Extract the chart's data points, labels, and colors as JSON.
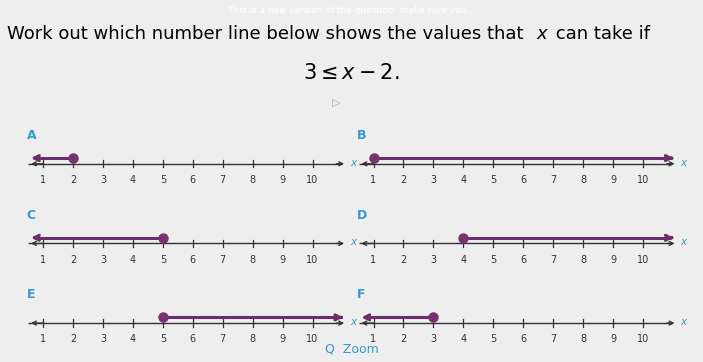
{
  "header_text": "This is a new version of the question; make sure you...",
  "title_line1": "Work out which number line below shows the values that ",
  "title_italic": "x",
  "title_line1_end": " can take if",
  "equation": "3 \\leq x - 2.",
  "bg_color": "#eeeeee",
  "header_bg": "#2a4a7f",
  "number_lines": [
    {
      "label": "A",
      "dot": 2,
      "arrow_dir": "left",
      "row": 0,
      "col": 0
    },
    {
      "label": "B",
      "dot": 1,
      "arrow_dir": "right",
      "row": 0,
      "col": 1
    },
    {
      "label": "C",
      "dot": 5,
      "arrow_dir": "left",
      "row": 1,
      "col": 0
    },
    {
      "label": "D",
      "dot": 4,
      "arrow_dir": "right",
      "row": 1,
      "col": 1
    },
    {
      "label": "E",
      "dot": 5,
      "arrow_dir": "right",
      "row": 2,
      "col": 0
    },
    {
      "label": "F",
      "dot": 3,
      "arrow_dir": "left",
      "row": 2,
      "col": 1
    }
  ],
  "tick_positions": [
    1,
    2,
    3,
    4,
    5,
    6,
    7,
    8,
    9,
    10
  ],
  "axis_min": 0.5,
  "axis_max": 10.8,
  "line_color": "#6b2d6b",
  "dot_color": "#7b3070",
  "axis_color": "#333333",
  "label_color": "#3399cc",
  "x_label_color": "#3399cc",
  "zoom_color": "#3399cc",
  "title_fontsize": 13,
  "eq_fontsize": 15
}
